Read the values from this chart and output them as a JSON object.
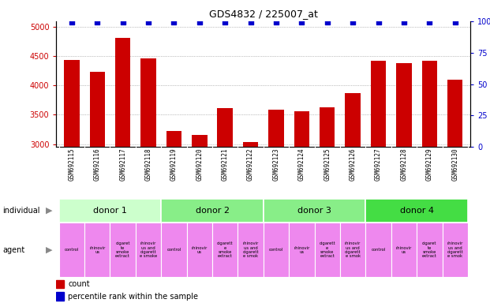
{
  "title": "GDS4832 / 225007_at",
  "samples": [
    "GSM692115",
    "GSM692116",
    "GSM692117",
    "GSM692118",
    "GSM692119",
    "GSM692120",
    "GSM692121",
    "GSM692122",
    "GSM692123",
    "GSM692124",
    "GSM692125",
    "GSM692126",
    "GSM692127",
    "GSM692128",
    "GSM692129",
    "GSM692130"
  ],
  "counts": [
    4440,
    4230,
    4820,
    4470,
    3220,
    3150,
    3610,
    3030,
    3590,
    3560,
    3630,
    3870,
    4430,
    4380,
    4430,
    4100
  ],
  "bar_color": "#cc0000",
  "dot_color": "#0000cc",
  "ylim_left": [
    2950,
    5100
  ],
  "ylim_right": [
    0,
    100
  ],
  "yticks_left": [
    3000,
    3500,
    4000,
    4500,
    5000
  ],
  "yticks_right": [
    0,
    25,
    50,
    75,
    100
  ],
  "donors": [
    {
      "label": "donor 1",
      "start": 0,
      "end": 4,
      "color": "#ccffcc"
    },
    {
      "label": "donor 2",
      "start": 4,
      "end": 8,
      "color": "#88ee88"
    },
    {
      "label": "donor 3",
      "start": 8,
      "end": 12,
      "color": "#88ee88"
    },
    {
      "label": "donor 4",
      "start": 12,
      "end": 16,
      "color": "#44dd44"
    }
  ],
  "agents": [
    "control",
    "rhinovir\nus",
    "cigaret\nte\nsmoke\nextract",
    "rhinovir\nus and\ncigarett\ne smoke",
    "control",
    "rhinovir\nus",
    "cigarett\ne\nsmoke\nextract",
    "rhinovir\nus and\ncigarett\ne smok",
    "control",
    "rhinovir\nus",
    "cigarett\ne\nsmoke\nextract",
    "rhinovir\nus and\ncigarett\ne smok",
    "control",
    "rhinovir\nus",
    "cigaret\nte\nsmoke\nextract",
    "rhinovir\nus and\ncigarett\ne smok"
  ],
  "agent_color": "#ee88ee",
  "legend_count_color": "#cc0000",
  "legend_dot_color": "#0000cc",
  "bg_color": "#ffffff",
  "tick_label_color_left": "#cc0000",
  "tick_label_color_right": "#0000cc",
  "bar_width": 0.6,
  "dot_size": 18,
  "individual_label": "individual",
  "agent_label": "agent",
  "sample_bg_color": "#cccccc"
}
